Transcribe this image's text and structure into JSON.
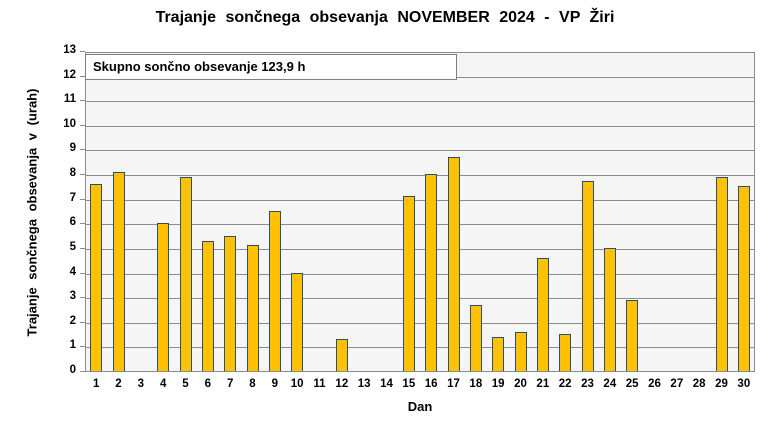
{
  "chart_data": {
    "type": "bar",
    "title": "Trajanje sončnega obsevanja NOVEMBER 2024 - VP Žiri",
    "annotation": "Skupno sončno obsevanje 123,9 h",
    "total_hours": "123,9 h",
    "xlabel": "Dan",
    "ylabel": "Trajanje sončnega obsevanja v (urah)",
    "categories": [
      "1",
      "2",
      "3",
      "4",
      "5",
      "6",
      "7",
      "8",
      "9",
      "10",
      "11",
      "12",
      "13",
      "14",
      "15",
      "16",
      "17",
      "18",
      "19",
      "20",
      "21",
      "22",
      "23",
      "24",
      "25",
      "26",
      "27",
      "28",
      "29",
      "30"
    ],
    "values": [
      7.6,
      8.1,
      0,
      6.0,
      7.9,
      5.3,
      5.5,
      5.1,
      6.5,
      4.0,
      0,
      1.3,
      0,
      0,
      7.1,
      8.0,
      8.7,
      2.7,
      1.4,
      1.6,
      4.6,
      1.5,
      7.7,
      5.0,
      2.9,
      0,
      0,
      0,
      7.9,
      7.5
    ],
    "ylim": [
      0,
      13
    ],
    "ytick_step": 1,
    "grid": true,
    "legend_position": "none",
    "colors": {
      "bar_fill": "#FFC103",
      "bar_border": "#2E4E6E",
      "plot_background": "#F5F5F5",
      "gridline": "#8C8C8C",
      "text": "#000000",
      "chart_background": "#FFFFFF"
    }
  }
}
